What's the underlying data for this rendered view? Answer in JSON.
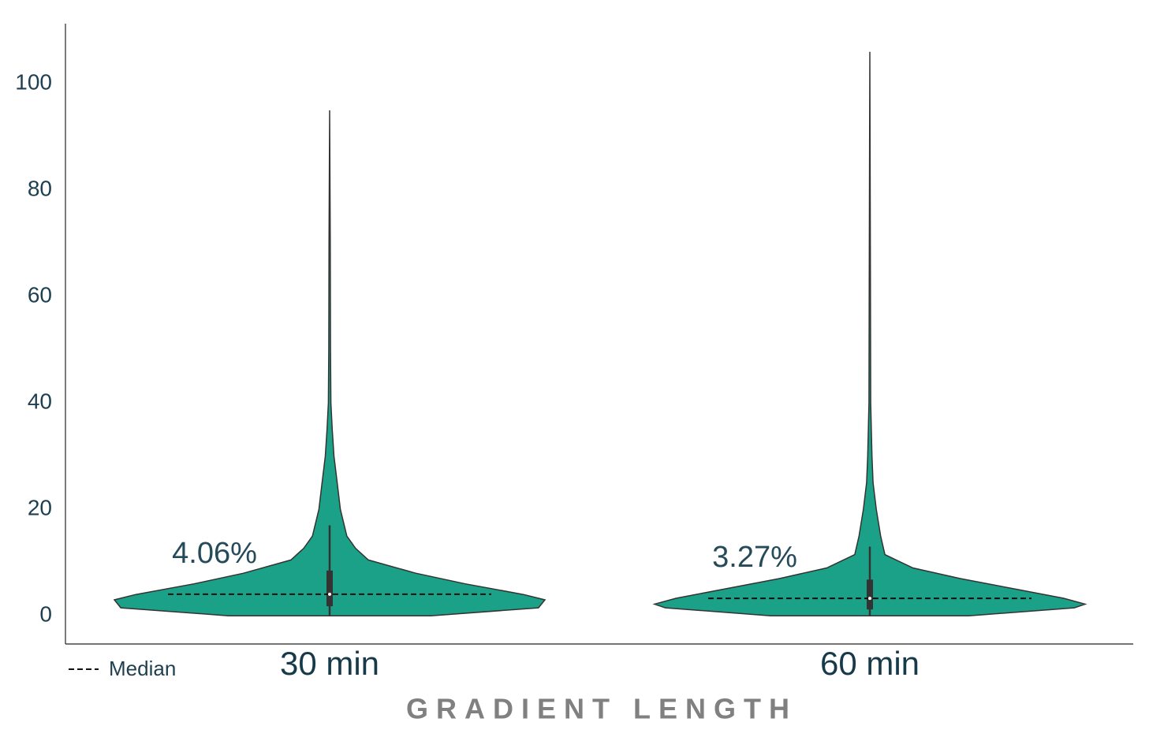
{
  "chart_data": {
    "type": "violin",
    "categories": [
      "30 min",
      "60 min"
    ],
    "xlabel": "GRADIENT LENGTH",
    "ylim": [
      -5.3,
      111.3
    ],
    "yticks": [
      0,
      20,
      40,
      60,
      80,
      100
    ],
    "grid": false,
    "color": "#1ba187",
    "legend": "bottom-left",
    "violins": [
      {
        "y": [
          0,
          1.5,
          3,
          4,
          6,
          8,
          10.5,
          12.7,
          15,
          20,
          25,
          30,
          35,
          40,
          50,
          70,
          95
        ],
        "density": [
          0.47,
          0.97,
          1.0,
          0.9,
          0.63,
          0.4,
          0.18,
          0.12,
          0.08,
          0.05,
          0.035,
          0.02,
          0.012,
          0.006,
          0.004,
          0.003,
          0
        ],
        "box": [
          1.8,
          8.5
        ],
        "whisker": [
          0,
          17
        ]
      },
      {
        "y": [
          0,
          1.5,
          2.2,
          3.3,
          5,
          7,
          9,
          11.5,
          15,
          20,
          25,
          30,
          40,
          60,
          106
        ],
        "density": [
          0.46,
          0.95,
          1.0,
          0.9,
          0.68,
          0.42,
          0.2,
          0.07,
          0.05,
          0.03,
          0.015,
          0.01,
          0.004,
          0.003,
          0
        ],
        "box": [
          1.2,
          6.8
        ],
        "whisker": [
          0,
          13
        ]
      }
    ],
    "medians": {
      "name": "Median",
      "values": [
        4.06,
        3.27
      ],
      "value_labels": [
        "4.06%",
        "3.27%"
      ]
    }
  }
}
